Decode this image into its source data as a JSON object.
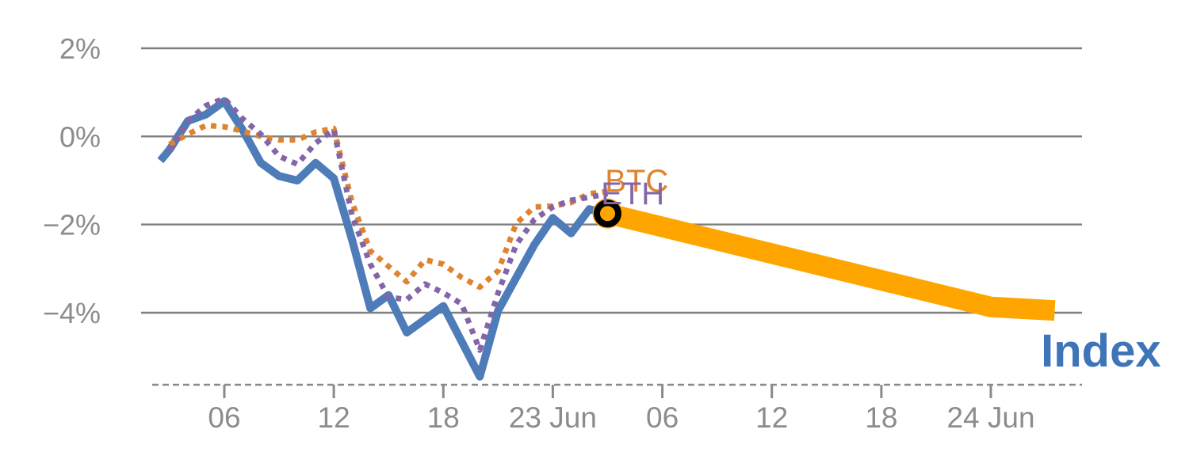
{
  "page": {
    "description": "Two-day percent performance chart: BTC and ETH dotted history lines, solid Index line ending at a marker, and a projected Index band"
  },
  "chart_data": {
    "type": "line",
    "title": "",
    "subtitle": "",
    "xlabel": "",
    "ylabel": "",
    "grid": "horizontal",
    "legend_position": "inline-end-labels",
    "x_unit": "hours since 22 Jun 00:00",
    "x_range": [
      1.5,
      53
    ],
    "y_range": [
      -5.8,
      2.6
    ],
    "x_ticks": [
      {
        "hour": 6,
        "label": "06"
      },
      {
        "hour": 12,
        "label": "12"
      },
      {
        "hour": 18,
        "label": "18"
      },
      {
        "hour": 24,
        "label": "23 Jun"
      },
      {
        "hour": 30,
        "label": "06"
      },
      {
        "hour": 36,
        "label": "12"
      },
      {
        "hour": 42,
        "label": "18"
      },
      {
        "hour": 48,
        "label": "24 Jun"
      }
    ],
    "y_ticks": [
      {
        "value": 2,
        "label": "2%"
      },
      {
        "value": 0,
        "label": "0%"
      },
      {
        "value": -2,
        "label": "−2%"
      },
      {
        "value": -4,
        "label": "−4%"
      }
    ],
    "series": [
      {
        "name": "Index",
        "style": "solid",
        "color": "#4E7CB9",
        "width": 10,
        "x": [
          2.5,
          3,
          4,
          5,
          6,
          7,
          8,
          9,
          10,
          11,
          12,
          13,
          14,
          15,
          16,
          17,
          18,
          19,
          20,
          21,
          22,
          23,
          24,
          25,
          26,
          27
        ],
        "values": [
          -0.55,
          -0.3,
          0.35,
          0.5,
          0.8,
          0.15,
          -0.6,
          -0.9,
          -1.0,
          -0.6,
          -0.95,
          -2.35,
          -3.9,
          -3.6,
          -4.45,
          -4.15,
          -3.85,
          -4.65,
          -5.45,
          -3.95,
          -3.2,
          -2.45,
          -1.85,
          -2.2,
          -1.65,
          -1.75
        ]
      },
      {
        "name": "BTC",
        "style": "dotted",
        "color": "#E0832F",
        "width": 7,
        "x": [
          3,
          4,
          5,
          6,
          7,
          8,
          9,
          10,
          11,
          12,
          13,
          14,
          15,
          16,
          17,
          18,
          19,
          20,
          21,
          22,
          23,
          24,
          25,
          26,
          27
        ],
        "values": [
          -0.18,
          0.05,
          0.25,
          0.22,
          0.12,
          0.0,
          -0.08,
          -0.08,
          0.1,
          0.18,
          -1.5,
          -2.6,
          -2.95,
          -3.3,
          -2.8,
          -2.9,
          -3.2,
          -3.42,
          -3.05,
          -1.97,
          -1.6,
          -1.58,
          -1.5,
          -1.3,
          -1.25
        ]
      },
      {
        "name": "ETH",
        "style": "dotted",
        "color": "#8465A8",
        "width": 7,
        "x": [
          3,
          4,
          5,
          6,
          7,
          8,
          9,
          10,
          11,
          12,
          13,
          14,
          15,
          16,
          17,
          18,
          19,
          20,
          21,
          22,
          23,
          24,
          25,
          26,
          27
        ],
        "values": [
          -0.33,
          0.35,
          0.7,
          0.86,
          0.4,
          0.05,
          -0.45,
          -0.63,
          -0.15,
          0.15,
          -1.8,
          -2.9,
          -3.65,
          -3.7,
          -3.35,
          -3.55,
          -3.8,
          -4.85,
          -3.55,
          -2.45,
          -1.88,
          -1.6,
          -1.45,
          -1.38,
          -1.3
        ]
      }
    ],
    "forecast": {
      "series": "Index",
      "color": "#FFA500",
      "width": 26,
      "x": [
        27,
        48,
        51.5
      ],
      "values": [
        -1.75,
        -3.87,
        -3.95
      ]
    },
    "marker": {
      "x": 27,
      "value": -1.75,
      "shape": "open-circle",
      "ring_color": "#000000",
      "fill_color": "#FFA500"
    },
    "annotations": [
      {
        "text": "BTC",
        "x": 26.86,
        "y": -1.25,
        "color": "#E0832F",
        "size": 40,
        "weight": "normal"
      },
      {
        "text": "ETH",
        "x": 26.64,
        "y": -1.54,
        "color": "#8465A8",
        "size": 40,
        "weight": "normal"
      },
      {
        "text": "Index",
        "x": 50.74,
        "y": -5.22,
        "color": "#3E74B8",
        "size": 58,
        "weight": "bold"
      }
    ],
    "axis_colors": {
      "grid": "#7F7F7F",
      "axis": "#8A8A8A",
      "tick_text": "#8C8C8C"
    }
  }
}
